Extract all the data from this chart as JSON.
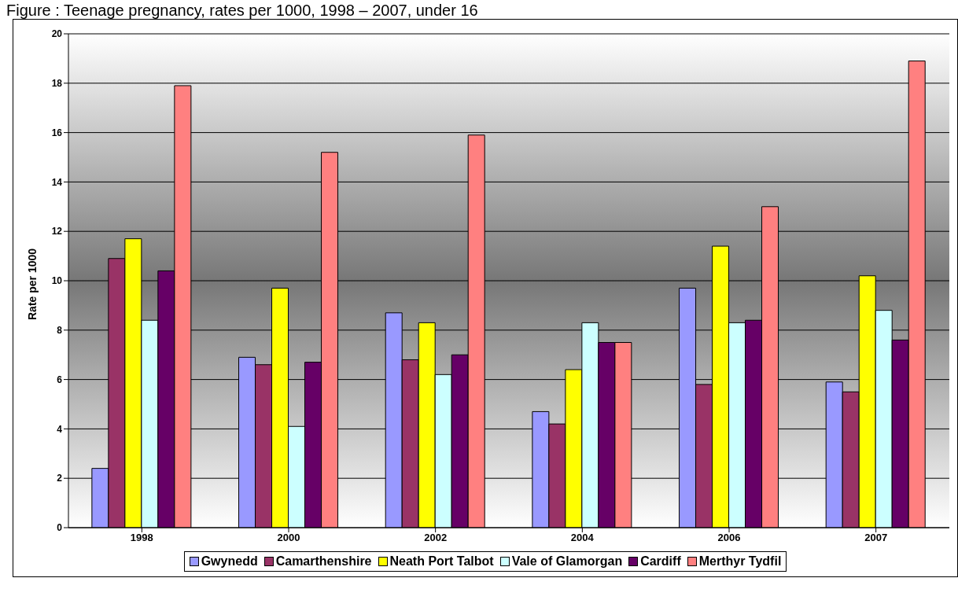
{
  "chart_data": {
    "type": "bar",
    "title": "Figure :  Teenage pregnancy, rates per 1000, 1998 – 2007, under 16",
    "ylabel": "Rate per 1000",
    "categories": [
      "1998",
      "2000",
      "2002",
      "2004",
      "2006",
      "2007"
    ],
    "series": [
      {
        "name": "Gwynedd",
        "color": "#9999ff",
        "values": [
          2.4,
          6.9,
          8.7,
          4.7,
          9.7,
          5.9
        ]
      },
      {
        "name": "Camarthenshire",
        "color": "#993366",
        "values": [
          10.9,
          6.6,
          6.8,
          4.2,
          5.8,
          5.5
        ]
      },
      {
        "name": "Neath Port Talbot",
        "color": "#ffff00",
        "values": [
          11.7,
          9.7,
          8.3,
          6.4,
          11.4,
          10.2
        ]
      },
      {
        "name": "Vale of Glamorgan",
        "color": "#ccffff",
        "values": [
          8.4,
          4.1,
          6.2,
          8.3,
          8.3,
          8.8
        ]
      },
      {
        "name": "Cardiff",
        "color": "#660066",
        "values": [
          10.4,
          6.7,
          7.0,
          7.5,
          8.4,
          7.6
        ]
      },
      {
        "name": "Merthyr Tydfil",
        "color": "#ff8080",
        "values": [
          17.9,
          15.2,
          15.9,
          7.5,
          13.0,
          18.9
        ]
      }
    ],
    "ylim": [
      0,
      20
    ],
    "yticks": [
      0,
      2,
      4,
      6,
      8,
      10,
      12,
      14,
      16,
      18,
      20
    ],
    "grid": "y",
    "legend": "bottom"
  }
}
